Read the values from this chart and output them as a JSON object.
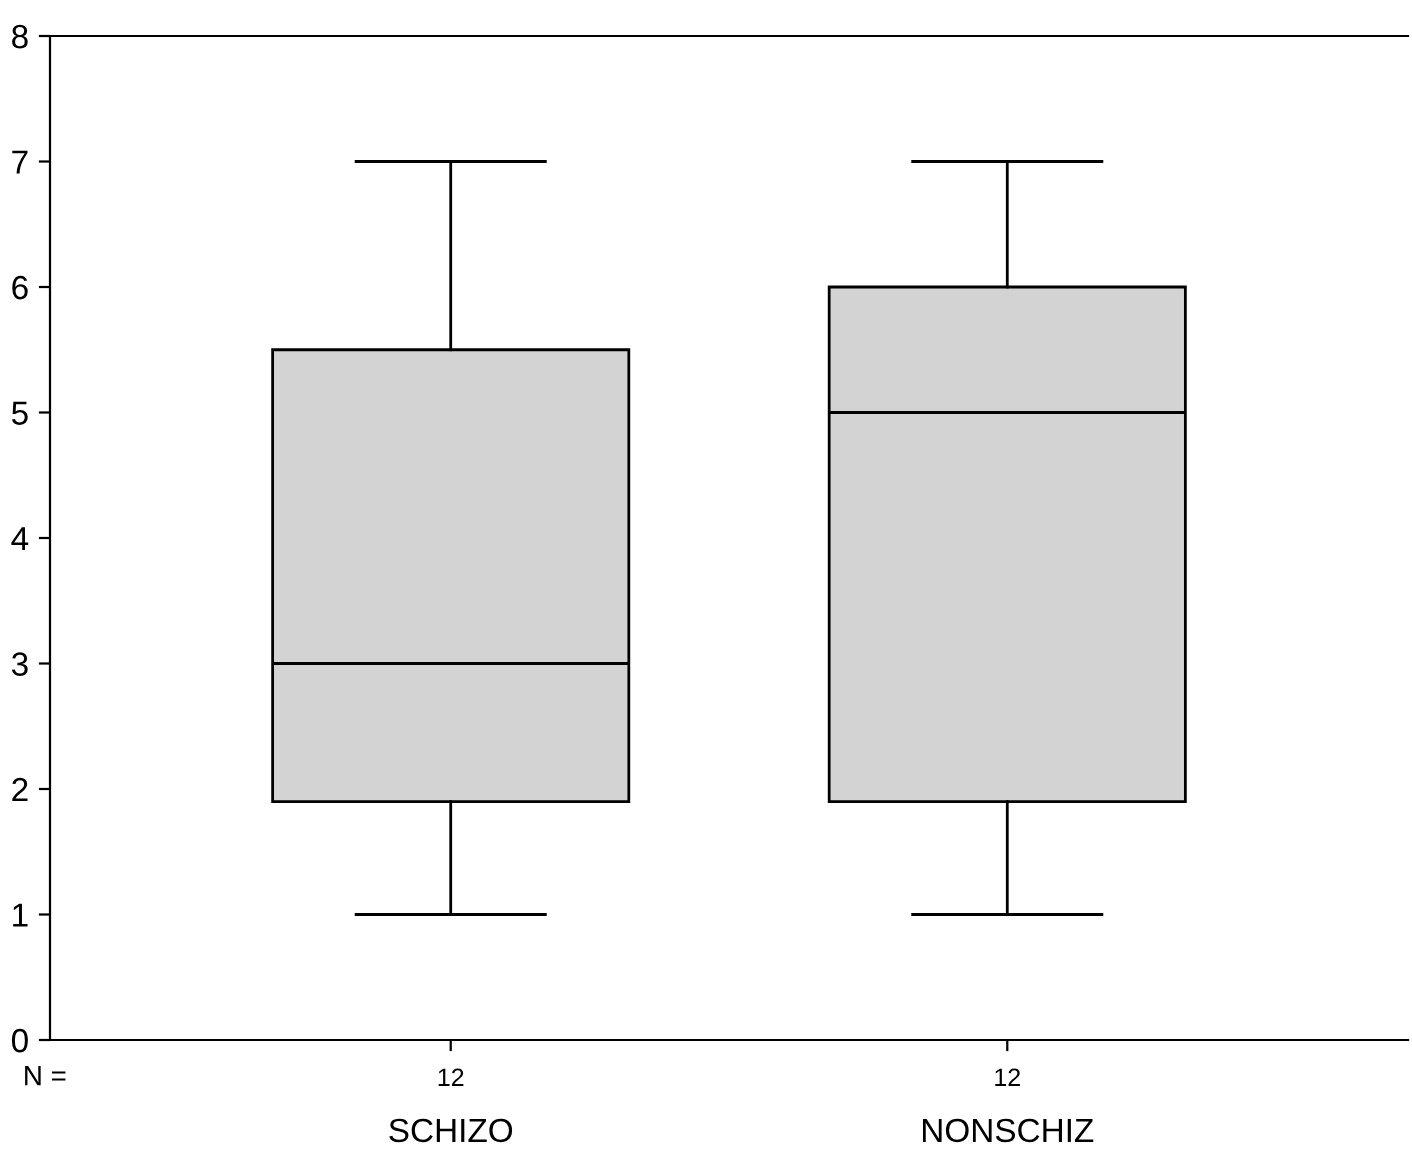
{
  "chart_data": {
    "type": "box",
    "categories": [
      "SCHIZO",
      "NONSCHIZ"
    ],
    "boxes": [
      {
        "low": 1,
        "q1": 1.9,
        "median": 3,
        "q3": 5.5,
        "high": 7
      },
      {
        "low": 1,
        "q1": 1.9,
        "median": 5,
        "q3": 6,
        "high": 7
      }
    ],
    "color": "#d3d3d3",
    "ylim": [
      0,
      8
    ],
    "yticks": [
      0,
      1,
      2,
      3,
      4,
      5,
      6,
      7,
      8
    ],
    "grid": false,
    "legend": false,
    "annotations": [
      "N =",
      "12",
      "12"
    ]
  }
}
